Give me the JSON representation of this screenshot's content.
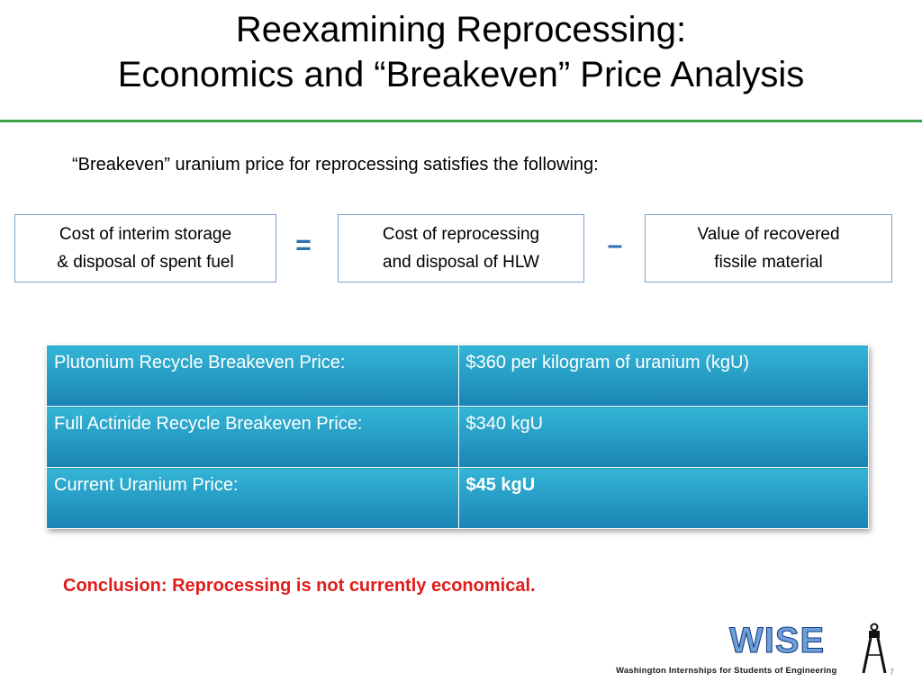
{
  "slide": {
    "title_line1": "Reexamining Reprocessing:",
    "title_line2": "Economics and “Breakeven” Price Analysis",
    "intro": "“Breakeven” uranium price for reprocessing satisfies the following:",
    "equation": {
      "box1_line1": "Cost of interim storage",
      "box1_line2": "& disposal of spent fuel",
      "op1": "=",
      "box2_line1": "Cost of  reprocessing",
      "box2_line2": "and disposal of HLW",
      "op2": "–",
      "box3_line1": "Value of recovered",
      "box3_line2": "fissile material"
    },
    "table": {
      "rows": [
        {
          "label": "Plutonium Recycle Breakeven Price:",
          "value": "$360 per kilogram of uranium (kgU)"
        },
        {
          "label": "Full Actinide Recycle Breakeven Price:",
          "value": "$340 kgU"
        },
        {
          "label": "Current Uranium Price:",
          "value": "$45 kgU"
        }
      ]
    },
    "conclusion": "Conclusion: Reprocessing is not currently economical.",
    "logo": {
      "wordmark": "WISE",
      "tagline": "Washington Internships for Students of Engineering"
    },
    "page_number": "7"
  },
  "colors": {
    "accent_rule": "#3fa14a",
    "operator": "#2f6fb3",
    "table_cell": "#1a84b3",
    "conclusion": "#e21b1b"
  }
}
